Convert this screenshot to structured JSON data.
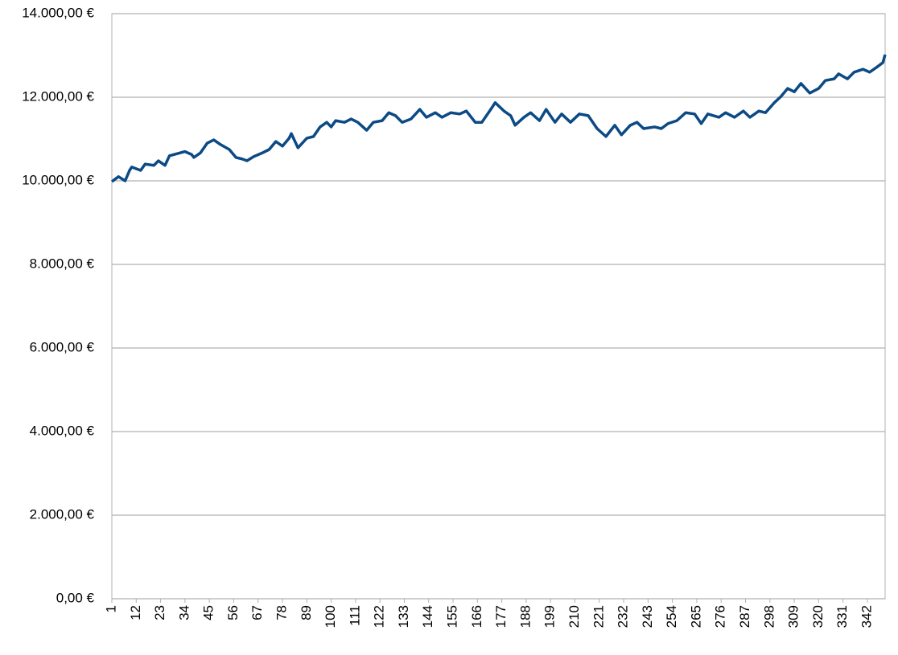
{
  "chart_data": {
    "type": "line",
    "x": [
      1,
      4,
      7,
      9,
      10,
      14,
      16,
      20,
      22,
      25,
      27,
      34,
      37,
      38,
      41,
      44,
      47,
      50,
      54,
      57,
      60,
      62,
      65,
      69,
      72,
      75,
      78,
      81,
      82,
      85,
      89,
      92,
      95,
      98,
      100,
      102,
      106,
      109,
      112,
      116,
      119,
      123,
      126,
      129,
      132,
      136,
      140,
      143,
      147,
      150,
      154,
      158,
      161,
      165,
      168,
      172,
      174,
      178,
      181,
      183,
      187,
      190,
      194,
      197,
      201,
      204,
      208,
      212,
      216,
      220,
      224,
      228,
      231,
      235,
      238,
      241,
      246,
      249,
      252,
      256,
      260,
      264,
      267,
      270,
      275,
      278,
      282,
      286,
      289,
      293,
      296,
      300,
      303,
      306,
      309,
      312,
      316,
      320,
      323,
      327,
      329,
      333,
      336,
      340,
      343,
      346,
      349,
      350
    ],
    "series": [
      {
        "color": "#0b4a85",
        "values": [
          9980,
          10100,
          10000,
          10250,
          10330,
          10250,
          10400,
          10370,
          10480,
          10370,
          10600,
          10700,
          10630,
          10560,
          10670,
          10900,
          10980,
          10870,
          10750,
          10560,
          10520,
          10480,
          10580,
          10670,
          10750,
          10940,
          10830,
          11020,
          11130,
          10790,
          11020,
          11060,
          11290,
          11400,
          11290,
          11440,
          11400,
          11480,
          11400,
          11210,
          11400,
          11440,
          11630,
          11560,
          11400,
          11480,
          11710,
          11520,
          11630,
          11520,
          11630,
          11600,
          11670,
          11400,
          11400,
          11710,
          11870,
          11670,
          11560,
          11330,
          11520,
          11630,
          11440,
          11710,
          11400,
          11600,
          11400,
          11600,
          11560,
          11250,
          11060,
          11330,
          11100,
          11330,
          11400,
          11250,
          11290,
          11250,
          11370,
          11440,
          11630,
          11600,
          11370,
          11600,
          11520,
          11630,
          11520,
          11670,
          11520,
          11670,
          11630,
          11870,
          12020,
          12210,
          12130,
          12330,
          12100,
          12210,
          12400,
          12440,
          12560,
          12440,
          12600,
          12670,
          12600,
          12710,
          12830,
          13020
        ]
      }
    ],
    "xlim": [
      1,
      350
    ],
    "xticks": [
      1,
      12,
      23,
      34,
      45,
      56,
      67,
      78,
      89,
      100,
      111,
      122,
      133,
      144,
      155,
      166,
      177,
      188,
      199,
      210,
      221,
      232,
      243,
      254,
      265,
      276,
      287,
      298,
      309,
      320,
      331,
      342
    ],
    "ylim": [
      0,
      14000
    ],
    "yticks": [
      {
        "value": 0,
        "label": "0,00 €"
      },
      {
        "value": 2000,
        "label": "2.000,00 €"
      },
      {
        "value": 4000,
        "label": "4.000,00 €"
      },
      {
        "value": 6000,
        "label": "6.000,00 €"
      },
      {
        "value": 8000,
        "label": "8.000,00 €"
      },
      {
        "value": 10000,
        "label": "10.000,00 €"
      },
      {
        "value": 12000,
        "label": "12.000,00 €"
      },
      {
        "value": 14000,
        "label": "14.000,00 €"
      }
    ],
    "grid": true
  }
}
